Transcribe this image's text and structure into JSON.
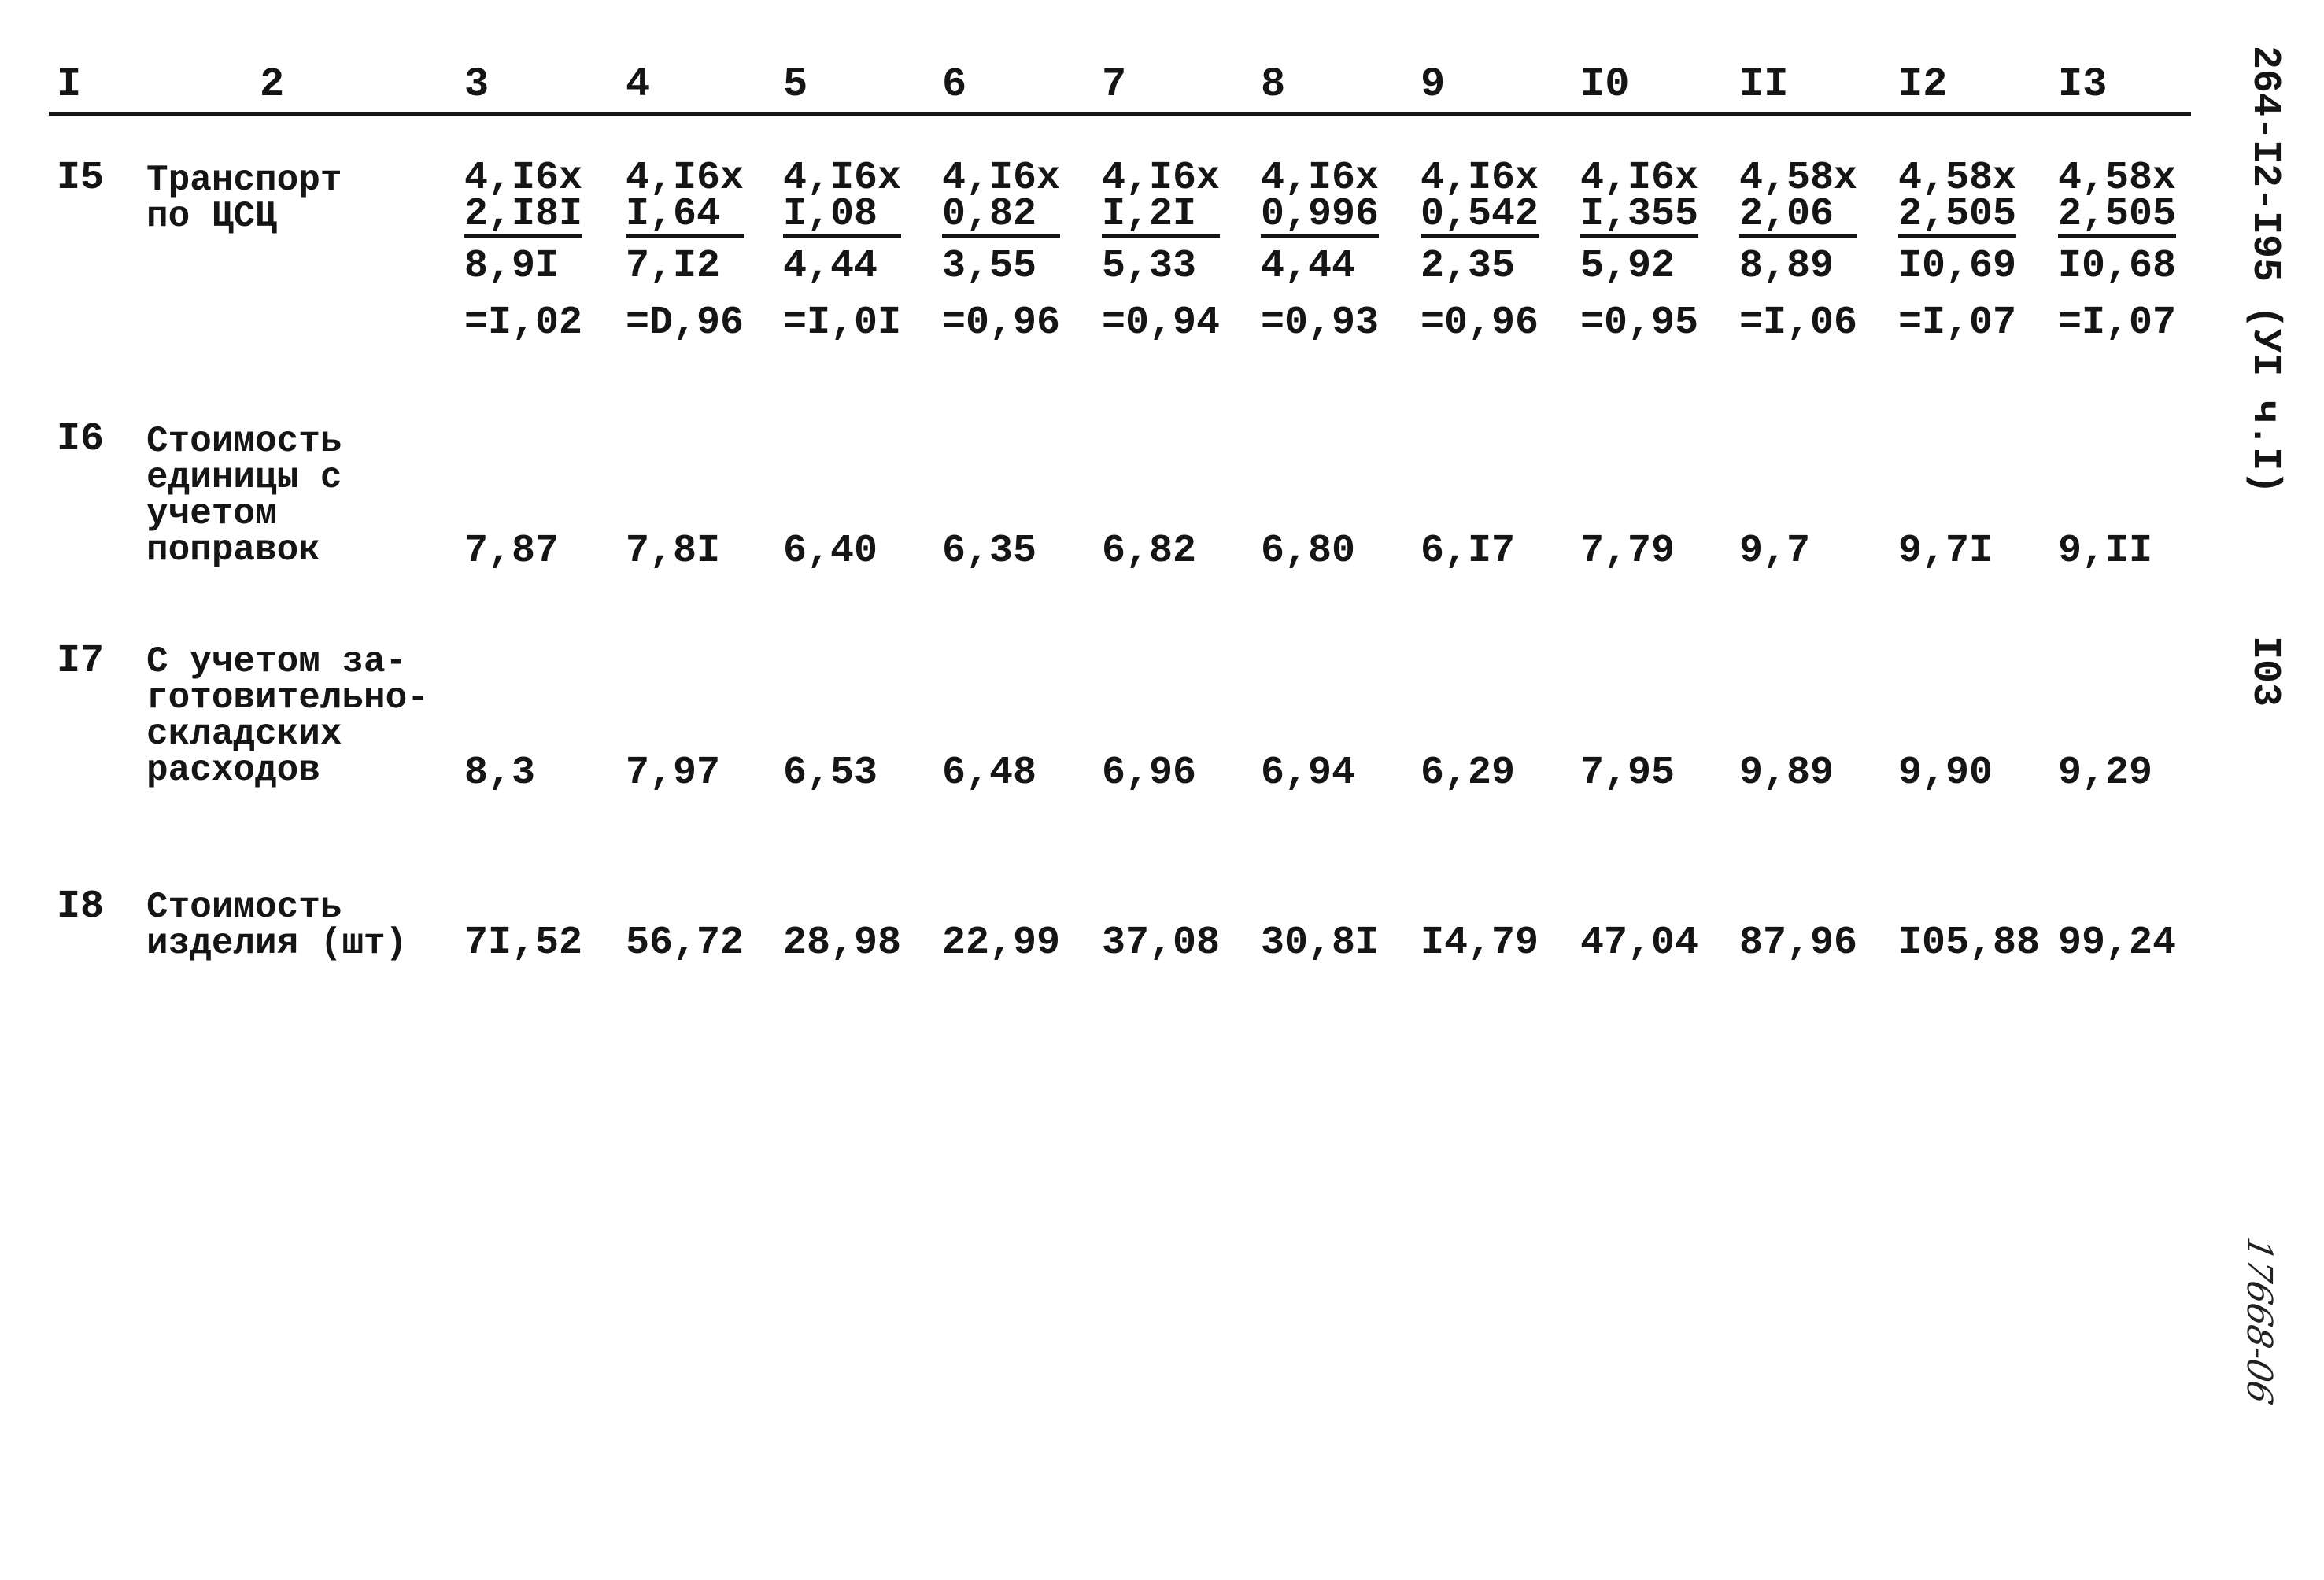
{
  "header_columns": [
    "I",
    "2",
    "3",
    "4",
    "5",
    "6",
    "7",
    "8",
    "9",
    "I0",
    "II",
    "I2",
    "I3"
  ],
  "rows": [
    {
      "number": "I5",
      "label_lines": [
        "Транспорт",
        "по ЦСЦ"
      ],
      "cells": [
        {
          "factor": "4,I6x",
          "base": "2,I8I",
          "product": "8,9I",
          "result": "=I,02"
        },
        {
          "factor": "4,I6x",
          "base": "I,64",
          "product": "7,I2",
          "result": "=D,96"
        },
        {
          "factor": "4,I6x",
          "base": "I,08",
          "product": "4,44",
          "result": "=I,0I"
        },
        {
          "factor": "4,I6x",
          "base": "0,82",
          "product": "3,55",
          "result": "=0,96"
        },
        {
          "factor": "4,I6x",
          "base": "I,2I",
          "product": "5,33",
          "result": "=0,94"
        },
        {
          "factor": "4,I6x",
          "base": "0,996",
          "product": "4,44",
          "result": "=0,93"
        },
        {
          "factor": "4,I6x",
          "base": "0,542",
          "product": "2,35",
          "result": "=0,96"
        },
        {
          "factor": "4,I6x",
          "base": "I,355",
          "product": "5,92",
          "result": "=0,95"
        },
        {
          "factor": "4,58x",
          "base": "2,06",
          "product": "8,89",
          "result": "=I,06"
        },
        {
          "factor": "4,58x",
          "base": "2,505",
          "product": "I0,69",
          "result": "=I,07"
        },
        {
          "factor": "4,58x",
          "base": "2,505",
          "product": "I0,68",
          "result": "=I,07"
        }
      ]
    },
    {
      "number": "I6",
      "label_lines": [
        "Стоимость",
        "единицы с",
        "учетом",
        "поправок"
      ],
      "values": [
        "7,87",
        "7,8I",
        "6,40",
        "6,35",
        "6,82",
        "6,80",
        "6,I7",
        "7,79",
        "9,7",
        "9,7I",
        "9,II"
      ]
    },
    {
      "number": "I7",
      "label_lines": [
        "С учетом за-",
        "готовительно-",
        "складских",
        "расходов"
      ],
      "values": [
        "8,3",
        "7,97",
        "6,53",
        "6,48",
        "6,96",
        "6,94",
        "6,29",
        "7,95",
        "9,89",
        "9,90",
        "9,29"
      ]
    },
    {
      "number": "I8",
      "label_lines": [
        "Стоимость",
        "изделия (шт)"
      ],
      "values": [
        "7I,52",
        "56,72",
        "28,98",
        "22,99",
        "37,08",
        "30,8I",
        "I4,79",
        "47,04",
        "87,96",
        "I05,88",
        "99,24"
      ]
    }
  ],
  "margin": {
    "document_code": "264-I2-I95 (УI ч.I)",
    "page_number": "I03",
    "handwritten_note": "17668-06"
  }
}
